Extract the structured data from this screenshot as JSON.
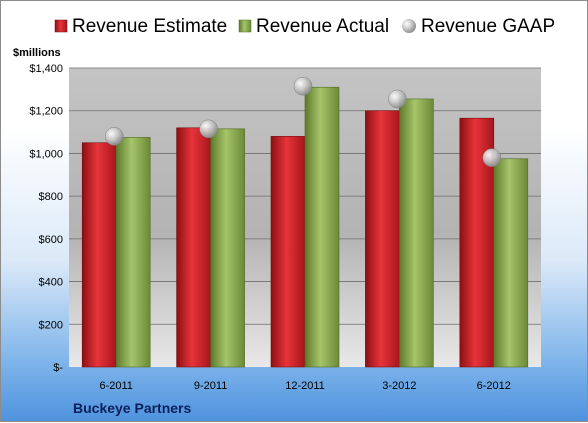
{
  "chart_data": {
    "type": "bar",
    "categories": [
      "6-2011",
      "9-2011",
      "12-2011",
      "3-2012",
      "6-2012"
    ],
    "series": [
      {
        "name": "Revenue Estimate",
        "kind": "bar",
        "color": "#cc2027",
        "values": [
          1050,
          1120,
          1080,
          1200,
          1165
        ]
      },
      {
        "name": "Revenue Actual",
        "kind": "bar",
        "color": "#8aab4c",
        "values": [
          1075,
          1115,
          1310,
          1255,
          975
        ]
      },
      {
        "name": "Revenue GAAP",
        "kind": "marker",
        "color": "#b8b8b8",
        "values": [
          1080,
          1115,
          1315,
          1255,
          980
        ]
      }
    ],
    "y_ticks": [
      0,
      200,
      400,
      600,
      800,
      1000,
      1200,
      1400
    ],
    "y_tick_labels": [
      "$-",
      "$200",
      "$400",
      "$600",
      "$800",
      "$1,000",
      "$1,200",
      "$1,400"
    ],
    "ylim": [
      0,
      1400
    ],
    "ylabel": "$millions",
    "xlabel": "",
    "title": "",
    "legend_position": "top",
    "grid": true
  },
  "company": "Buckeye Partners"
}
